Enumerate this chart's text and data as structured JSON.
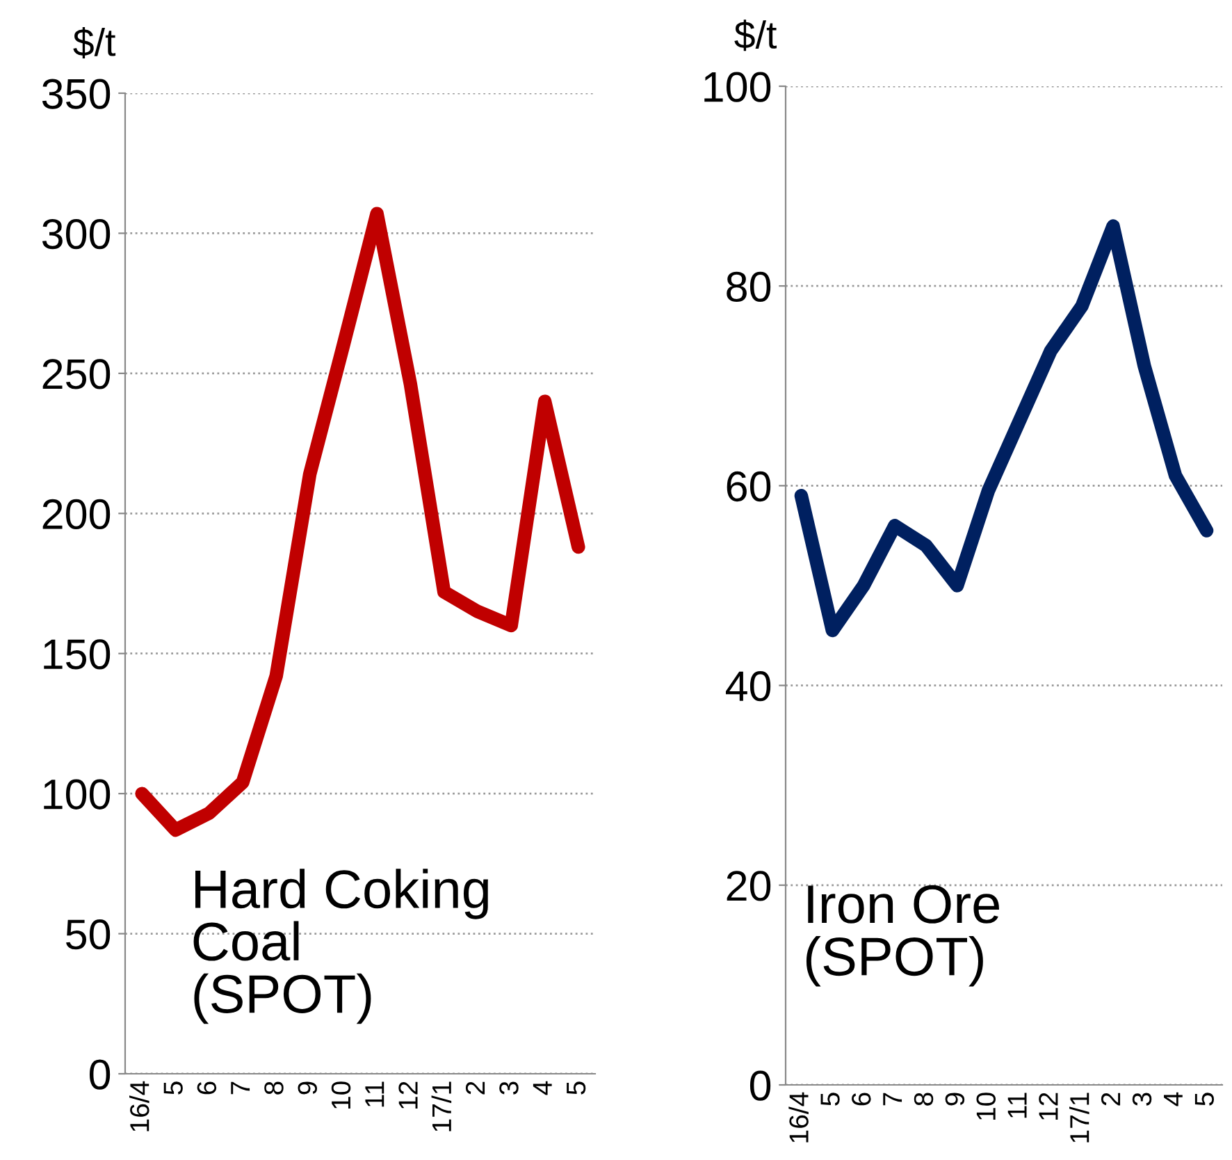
{
  "chart_data": [
    {
      "type": "line",
      "ylabel": "$/t",
      "categories": [
        "16/4",
        "5",
        "6",
        "7",
        "8",
        "9",
        "10",
        "11",
        "12",
        "17/1",
        "2",
        "3",
        "4",
        "5"
      ],
      "series": [
        {
          "color": "#c00000",
          "values": [
            100,
            87,
            93,
            104,
            142,
            214,
            260,
            307,
            246,
            172,
            165,
            160,
            240,
            188
          ]
        }
      ],
      "ylim": [
        0,
        350
      ],
      "yticks": [
        0,
        50,
        100,
        150,
        200,
        250,
        300,
        350
      ],
      "grid": "y",
      "legend": false,
      "marker": "none",
      "line_style": "solid",
      "annotations": [
        "Hard Coking\nCoal\n(SPOT)"
      ]
    },
    {
      "type": "line",
      "ylabel": "$/t",
      "categories": [
        "16/4",
        "5",
        "6",
        "7",
        "8",
        "9",
        "10",
        "11",
        "12",
        "17/1",
        "2",
        "3",
        "4",
        "5"
      ],
      "series": [
        {
          "color": "#002060",
          "values": [
            59,
            45.5,
            50,
            56,
            54,
            50,
            59.5,
            66.5,
            73.5,
            78,
            86,
            72,
            61,
            55.5
          ]
        }
      ],
      "ylim": [
        0,
        100
      ],
      "yticks": [
        0,
        20,
        40,
        60,
        80,
        100
      ],
      "grid": "y",
      "legend": false,
      "marker": "none",
      "line_style": "solid",
      "annotations": [
        "Iron Ore\n(SPOT)"
      ]
    }
  ]
}
